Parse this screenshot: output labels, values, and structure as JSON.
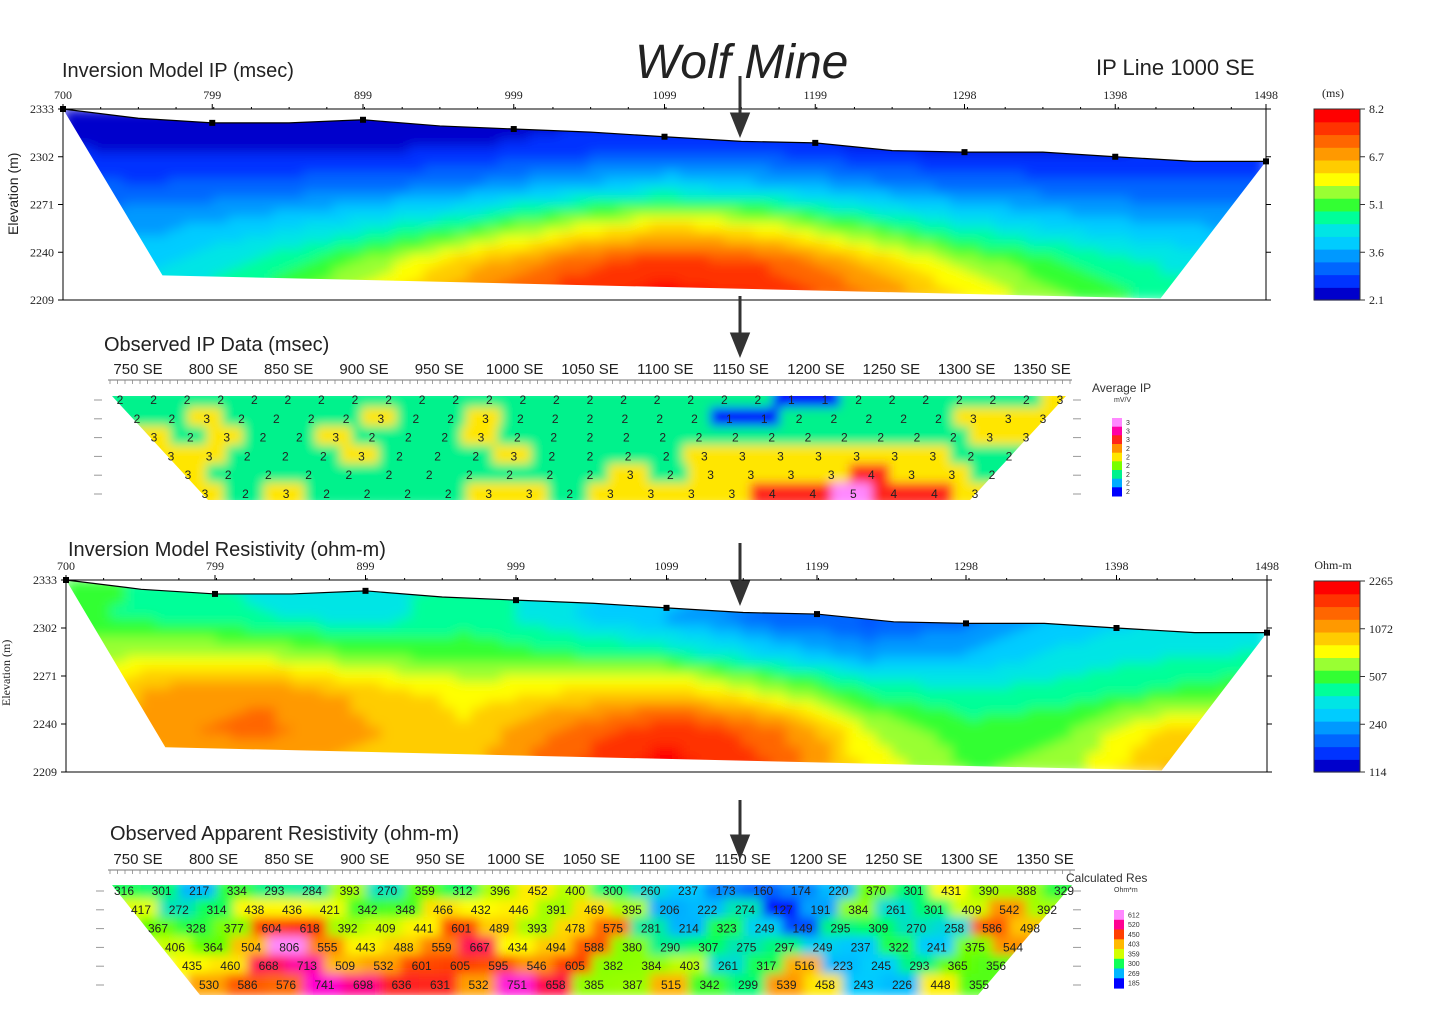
{
  "header": {
    "main_title": "Wolf Mine",
    "line_label": "IP Line 1000 SE"
  },
  "chart_data": [
    {
      "type": "heatmap",
      "title": "Inversion Model IP (msec)",
      "ylabel": "Elevation (m)",
      "x_ticks": [
        "700",
        "799",
        "899",
        "999",
        "1099",
        "1199",
        "1298",
        "1398",
        "1498"
      ],
      "x_tick_values": [
        700,
        799,
        899,
        999,
        1099,
        1199,
        1298,
        1398,
        1498
      ],
      "xlim": [
        700,
        1498
      ],
      "y_ticks": [
        "2333",
        "2302",
        "2271",
        "2240",
        "2209"
      ],
      "y_tick_values": [
        2333,
        2302,
        2271,
        2240,
        2209
      ],
      "ylim": [
        2209,
        2333
      ],
      "colorbar": {
        "unit": "(ms)",
        "ticks": [
          "8.2",
          "6.7",
          "5.1",
          "3.6",
          "2.1"
        ],
        "tick_values": [
          8.2,
          6.7,
          5.1,
          3.6,
          2.1
        ],
        "colors": [
          "#0000cc",
          "#0033ff",
          "#0066ff",
          "#0099ff",
          "#00ccff",
          "#00e5e5",
          "#00ff99",
          "#33ff33",
          "#99ff33",
          "#ffff00",
          "#ffcc00",
          "#ff9900",
          "#ff6600",
          "#ff3300",
          "#ff0000"
        ]
      },
      "surface": [
        [
          700,
          2333
        ],
        [
          750,
          2327
        ],
        [
          799,
          2324
        ],
        [
          850,
          2324
        ],
        [
          899,
          2326
        ],
        [
          950,
          2322
        ],
        [
          999,
          2320
        ],
        [
          1050,
          2318
        ],
        [
          1099,
          2315
        ],
        [
          1150,
          2312
        ],
        [
          1199,
          2311
        ],
        [
          1250,
          2306
        ],
        [
          1298,
          2305
        ],
        [
          1350,
          2305
        ],
        [
          1398,
          2302
        ],
        [
          1450,
          2299
        ],
        [
          1498,
          2299
        ]
      ],
      "bottom": [
        [
          1428,
          2210
        ],
        [
          766,
          2225
        ]
      ],
      "value_grid_ms": [
        [
          2.1,
          2.1,
          2.1,
          2.1,
          2.1,
          2.2,
          2.1,
          2.1,
          2.2,
          2.1,
          2.1,
          2.2,
          2.2
        ],
        [
          2.3,
          2.2,
          2.2,
          2.2,
          2.3,
          2.4,
          2.6,
          2.5,
          2.3,
          2.2,
          2.2,
          2.3,
          2.3
        ],
        [
          2.8,
          2.8,
          2.9,
          3.0,
          3.2,
          3.6,
          4.0,
          3.7,
          3.3,
          3.0,
          2.9,
          2.8,
          2.8
        ],
        [
          3.4,
          3.5,
          3.8,
          4.2,
          4.8,
          5.6,
          6.2,
          5.8,
          5.0,
          4.3,
          3.9,
          3.6,
          3.5
        ],
        [
          3.8,
          4.0,
          4.6,
          5.4,
          6.4,
          7.3,
          7.8,
          7.5,
          6.6,
          5.6,
          4.9,
          4.4,
          4.1
        ],
        [
          4.0,
          4.3,
          5.1,
          6.1,
          7.1,
          7.9,
          8.2,
          8.0,
          7.3,
          6.3,
          5.4,
          4.8,
          4.5
        ]
      ]
    },
    {
      "type": "heatmap",
      "title": "Observed IP Data (msec)",
      "x_ticks": [
        "750 SE",
        "800 SE",
        "850 SE",
        "900 SE",
        "950 SE",
        "1000 SE",
        "1050 SE",
        "1100 SE",
        "1150 SE",
        "1200 SE",
        "1250 SE",
        "1300 SE",
        "1350 SE"
      ],
      "legend_title": "Average IP",
      "legend_unit": "mV/V",
      "legend_ticks": [
        "3",
        "3",
        "3",
        "2",
        "2",
        "2",
        "2",
        "2",
        "2"
      ],
      "colors": [
        "#0000ff",
        "#0099ff",
        "#00ccff",
        "#00ff66",
        "#66ff00",
        "#ffff00",
        "#ffcc00",
        "#ff8800",
        "#ff3300",
        "#ff0066",
        "#ff00cc",
        "#ff88ff"
      ],
      "rows": [
        {
          "values": [
            2,
            2,
            2,
            2,
            2,
            2,
            2,
            2,
            2,
            2,
            2,
            2,
            2,
            2,
            2,
            2,
            2,
            2,
            2,
            2,
            1,
            1,
            2,
            2,
            2,
            2,
            2,
            2,
            3
          ]
        },
        {
          "values": [
            2,
            2,
            3,
            2,
            2,
            2,
            2,
            3,
            2,
            2,
            3,
            2,
            2,
            2,
            2,
            2,
            2,
            1,
            1,
            2,
            2,
            2,
            2,
            2,
            3,
            3,
            3
          ]
        },
        {
          "values": [
            3,
            2,
            3,
            2,
            2,
            3,
            2,
            2,
            2,
            3,
            2,
            2,
            2,
            2,
            2,
            2,
            2,
            2,
            2,
            2,
            2,
            2,
            2,
            3,
            3
          ]
        },
        {
          "values": [
            3,
            3,
            2,
            2,
            2,
            3,
            2,
            2,
            2,
            3,
            2,
            2,
            2,
            2,
            3,
            3,
            3,
            3,
            3,
            3,
            3,
            2,
            2
          ]
        },
        {
          "values": [
            3,
            2,
            2,
            2,
            2,
            2,
            2,
            2,
            2,
            2,
            2,
            3,
            2,
            3,
            3,
            3,
            3,
            4,
            3,
            3,
            2
          ]
        },
        {
          "values": [
            3,
            2,
            3,
            2,
            2,
            2,
            2,
            3,
            3,
            2,
            3,
            3,
            3,
            3,
            4,
            4,
            5,
            4,
            4,
            3
          ]
        }
      ]
    },
    {
      "type": "heatmap",
      "title": "Inversion Model Resistivity (ohm-m)",
      "ylabel": "Elevation (m)",
      "x_ticks": [
        "700",
        "799",
        "899",
        "999",
        "1099",
        "1199",
        "1298",
        "1398",
        "1498"
      ],
      "x_tick_values": [
        700,
        799,
        899,
        999,
        1099,
        1199,
        1298,
        1398,
        1498
      ],
      "xlim": [
        700,
        1498
      ],
      "y_ticks": [
        "2333",
        "2302",
        "2271",
        "2240",
        "2209"
      ],
      "y_tick_values": [
        2333,
        2302,
        2271,
        2240,
        2209
      ],
      "ylim": [
        2209,
        2333
      ],
      "colorbar": {
        "unit": "Ohm-m",
        "ticks": [
          "2265",
          "1072",
          "507",
          "240",
          "114"
        ],
        "tick_values": [
          2265,
          1072,
          507,
          240,
          114
        ],
        "colors": [
          "#0000cc",
          "#0033ff",
          "#0066ff",
          "#0099ff",
          "#00ccff",
          "#00e5e5",
          "#00ff99",
          "#33ff33",
          "#99ff33",
          "#ffff00",
          "#ffcc00",
          "#ff9900",
          "#ff6600",
          "#ff3300",
          "#ff0000"
        ]
      },
      "surface": [
        [
          700,
          2333
        ],
        [
          750,
          2327
        ],
        [
          799,
          2324
        ],
        [
          850,
          2324
        ],
        [
          899,
          2326
        ],
        [
          950,
          2322
        ],
        [
          999,
          2320
        ],
        [
          1050,
          2318
        ],
        [
          1099,
          2315
        ],
        [
          1150,
          2312
        ],
        [
          1199,
          2311
        ],
        [
          1250,
          2306
        ],
        [
          1298,
          2305
        ],
        [
          1350,
          2305
        ],
        [
          1398,
          2302
        ],
        [
          1450,
          2299
        ],
        [
          1498,
          2299
        ]
      ],
      "bottom": [
        [
          1428,
          2210
        ],
        [
          766,
          2225
        ]
      ],
      "value_grid_ohm_m": [
        [
          507,
          420,
          330,
          300,
          420,
          330,
          300,
          260,
          240,
          230,
          300,
          350,
          380
        ],
        [
          480,
          430,
          380,
          330,
          420,
          300,
          230,
          160,
          150,
          180,
          250,
          300,
          320
        ],
        [
          620,
          700,
          650,
          550,
          520,
          480,
          420,
          300,
          220,
          240,
          320,
          360,
          380
        ],
        [
          760,
          1200,
          1300,
          1000,
          800,
          900,
          1000,
          700,
          450,
          380,
          420,
          480,
          560
        ],
        [
          700,
          1300,
          1400,
          1100,
          900,
          1400,
          2000,
          1500,
          700,
          500,
          560,
          900,
          1000
        ],
        [
          620,
          900,
          1000,
          1000,
          950,
          1600,
          2265,
          1700,
          800,
          560,
          600,
          1100,
          1200
        ]
      ]
    },
    {
      "type": "heatmap",
      "title": "Observed Apparent Resistivity (ohm-m)",
      "x_ticks": [
        "750 SE",
        "800 SE",
        "850 SE",
        "900 SE",
        "950 SE",
        "1000 SE",
        "1050 SE",
        "1100 SE",
        "1150 SE",
        "1200 SE",
        "1250 SE",
        "1300 SE",
        "1350 SE"
      ],
      "legend_title": "Calculated Res",
      "legend_unit": "Ohm*m",
      "legend_ticks": [
        "612",
        "520",
        "450",
        "403",
        "359",
        "300",
        "269",
        "185"
      ],
      "colors": [
        "#0000ff",
        "#0099ff",
        "#00ccff",
        "#00ff66",
        "#66ff00",
        "#ffff00",
        "#ffcc00",
        "#ff8800",
        "#ff3300",
        "#ff0066",
        "#ff00cc",
        "#ff88ff"
      ],
      "rows": [
        {
          "values": [
            316,
            301,
            217,
            334,
            293,
            284,
            393,
            270,
            359,
            312,
            396,
            452,
            400,
            300,
            260,
            237,
            173,
            160,
            174,
            220,
            370,
            301,
            431,
            390,
            388,
            329
          ]
        },
        {
          "values": [
            417,
            272,
            314,
            438,
            436,
            421,
            342,
            348,
            466,
            432,
            446,
            391,
            469,
            395,
            206,
            222,
            274,
            127,
            191,
            384,
            261,
            301,
            409,
            542,
            392
          ]
        },
        {
          "values": [
            367,
            328,
            377,
            604,
            618,
            392,
            409,
            441,
            601,
            489,
            393,
            478,
            575,
            281,
            214,
            323,
            249,
            149,
            295,
            309,
            270,
            258,
            586,
            498
          ]
        },
        {
          "values": [
            406,
            364,
            504,
            806,
            555,
            443,
            488,
            559,
            667,
            434,
            494,
            588,
            380,
            290,
            307,
            275,
            297,
            249,
            237,
            322,
            241,
            375,
            544
          ]
        },
        {
          "values": [
            435,
            460,
            668,
            713,
            509,
            532,
            601,
            605,
            595,
            546,
            605,
            382,
            384,
            403,
            261,
            317,
            516,
            223,
            245,
            293,
            365,
            356
          ]
        },
        {
          "values": [
            530,
            586,
            576,
            741,
            698,
            636,
            631,
            532,
            751,
            658,
            385,
            387,
            515,
            342,
            299,
            539,
            458,
            243,
            226,
            448,
            355
          ]
        }
      ]
    }
  ]
}
